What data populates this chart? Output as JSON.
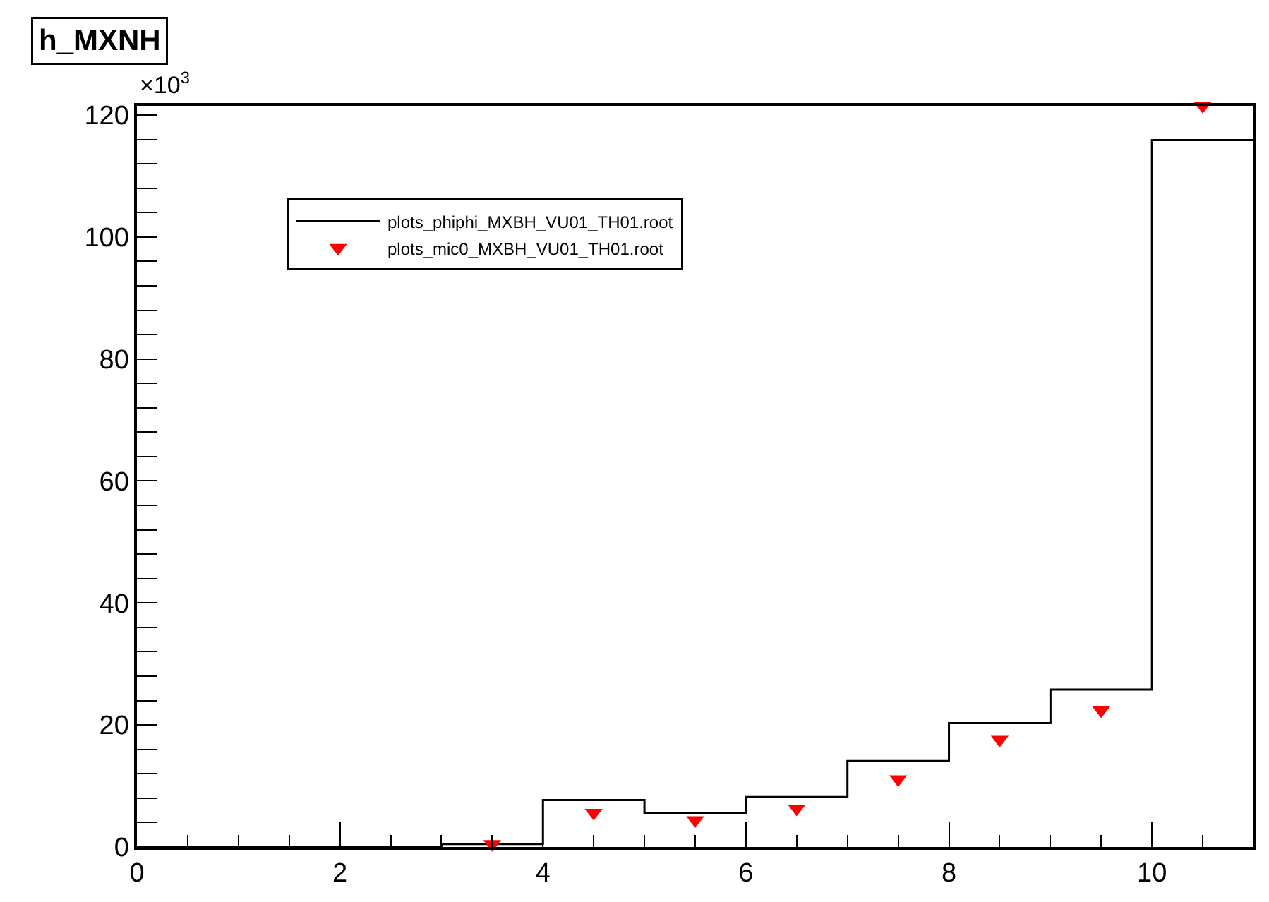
{
  "chart_data": {
    "type": "histogram",
    "title": "h_MXNH",
    "annotations": [
      "×10$^{3}$"
    ],
    "bins": [
      0,
      1,
      2,
      3,
      4,
      5,
      6,
      7,
      8,
      9,
      10,
      11
    ],
    "series": [
      {
        "name": "plots_phiphi_MXBH_VU01_TH01.root",
        "color": "#000000",
        "values": [
          0,
          0,
          0,
          0.5,
          7.7,
          5.6,
          8.2,
          14.1,
          20.3,
          25.8,
          115.9
        ]
      },
      {
        "name": "plots_mic0_MXBH_VU01_TH01.root",
        "color": "#ff0000",
        "type": "scatter",
        "marker": "triangle",
        "x": [
          3.5,
          4.5,
          5.5,
          6.5,
          7.5,
          8.5,
          9.5,
          10.5
        ],
        "values": [
          0.5,
          5.6,
          4.4,
          6.3,
          11.1,
          17.6,
          22.4,
          121.5
        ]
      }
    ],
    "xlim": [
      0,
      11
    ],
    "xticks": [
      0,
      2,
      4,
      6,
      8,
      10
    ],
    "ylim": [
      0,
      121.5
    ],
    "yticks": [
      0,
      20,
      40,
      60,
      80,
      100,
      120
    ],
    "legend": "top left"
  }
}
